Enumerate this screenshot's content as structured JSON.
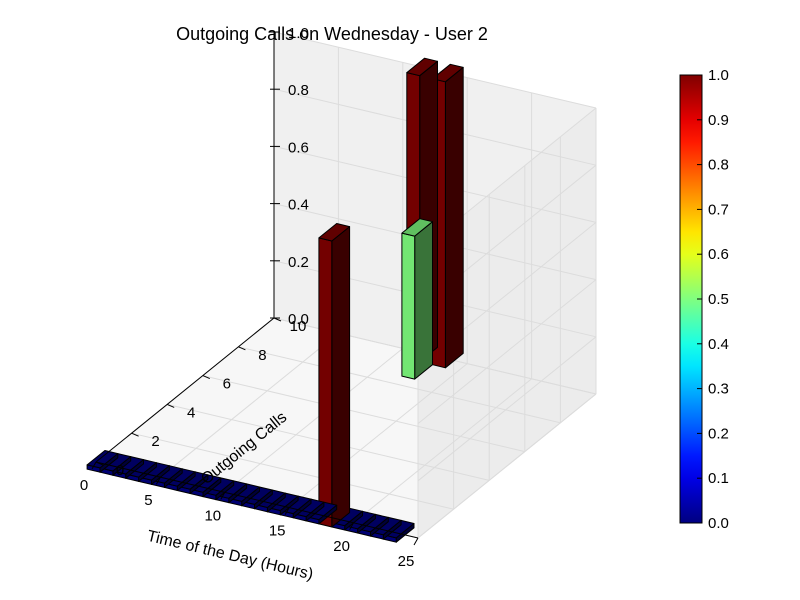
{
  "chart_data": {
    "type": "bar3d",
    "title": "Outgoing Calls on Wednesday - User 2",
    "xlabel": "Time of the Day (Hours)",
    "ylabel": "Outgoing Calls",
    "zlabel": "",
    "xlim": [
      0,
      25
    ],
    "ylim": [
      0,
      10
    ],
    "zlim": [
      0,
      1.0
    ],
    "x_ticks": [
      "0",
      "5",
      "10",
      "15",
      "20",
      "25"
    ],
    "y_ticks": [
      "0",
      "2",
      "4",
      "6",
      "8",
      "10"
    ],
    "z_ticks": [
      "0.0",
      "0.2",
      "0.4",
      "0.6",
      "0.8",
      "1.0"
    ],
    "grid": true,
    "colormap": "jet",
    "colorbar_ticks": [
      "0.0",
      "0.1",
      "0.2",
      "0.3",
      "0.4",
      "0.5",
      "0.6",
      "0.7",
      "0.8",
      "0.9",
      "1.0"
    ],
    "bars": [
      {
        "hour": 0,
        "calls": 0,
        "value": 0
      },
      {
        "hour": 1,
        "calls": 0,
        "value": 0
      },
      {
        "hour": 2,
        "calls": 0,
        "value": 0
      },
      {
        "hour": 3,
        "calls": 0,
        "value": 0
      },
      {
        "hour": 4,
        "calls": 0,
        "value": 0
      },
      {
        "hour": 5,
        "calls": 0,
        "value": 0
      },
      {
        "hour": 6,
        "calls": 0,
        "value": 0
      },
      {
        "hour": 7,
        "calls": 0,
        "value": 0
      },
      {
        "hour": 8,
        "calls": 0,
        "value": 0
      },
      {
        "hour": 9,
        "calls": 0,
        "value": 0
      },
      {
        "hour": 10,
        "calls": 0,
        "value": 0
      },
      {
        "hour": 11,
        "calls": 0,
        "value": 0
      },
      {
        "hour": 12,
        "calls": 0,
        "value": 0
      },
      {
        "hour": 13,
        "calls": 0,
        "value": 0
      },
      {
        "hour": 14,
        "calls": 0,
        "value": 0
      },
      {
        "hour": 15,
        "calls": 0,
        "value": 0
      },
      {
        "hour": 16,
        "calls": 0,
        "value": 0
      },
      {
        "hour": 17,
        "calls": 0,
        "value": 0
      },
      {
        "hour": 18,
        "calls": 0,
        "value": 1.0
      },
      {
        "hour": 19,
        "calls": 0,
        "value": 0
      },
      {
        "hour": 20,
        "calls": 0,
        "value": 0
      },
      {
        "hour": 21,
        "calls": 0,
        "value": 0
      },
      {
        "hour": 22,
        "calls": 0,
        "value": 0
      },
      {
        "hour": 23,
        "calls": 0,
        "value": 0
      },
      {
        "hour": 11,
        "calls": 10,
        "value": 1.0
      },
      {
        "hour": 12,
        "calls": 9,
        "value": 0.5
      },
      {
        "hour": 13,
        "calls": 10,
        "value": 1.0
      }
    ]
  }
}
